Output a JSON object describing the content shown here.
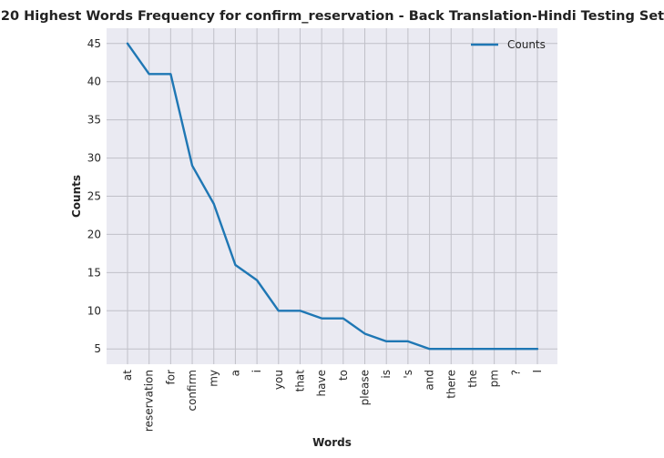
{
  "chart_data": {
    "type": "line",
    "title": "20 Highest Words Frequency for confirm_reservation - Back Translation-Hindi Testing Set",
    "xlabel": "Words",
    "ylabel": "Counts",
    "categories": [
      "at",
      "reservation",
      "for",
      "confirm",
      "my",
      "a",
      "i",
      "you",
      "that",
      "have",
      "to",
      "please",
      "is",
      "'s",
      "and",
      "there",
      "the",
      "pm",
      "?",
      "I"
    ],
    "series": [
      {
        "name": "Counts",
        "values": [
          45,
          41,
          41,
          29,
          24,
          16,
          14,
          10,
          10,
          9,
          9,
          7,
          6,
          6,
          5,
          5,
          5,
          5,
          5,
          5
        ]
      }
    ],
    "yticks": [
      5,
      10,
      15,
      20,
      25,
      30,
      35,
      40,
      45
    ],
    "ylim": [
      3,
      47
    ],
    "grid": true,
    "legend": "top-right",
    "colors": {
      "line": "#1f77b4",
      "plot_bg": "#eaeaf2",
      "grid": "#c0c0c8"
    }
  }
}
